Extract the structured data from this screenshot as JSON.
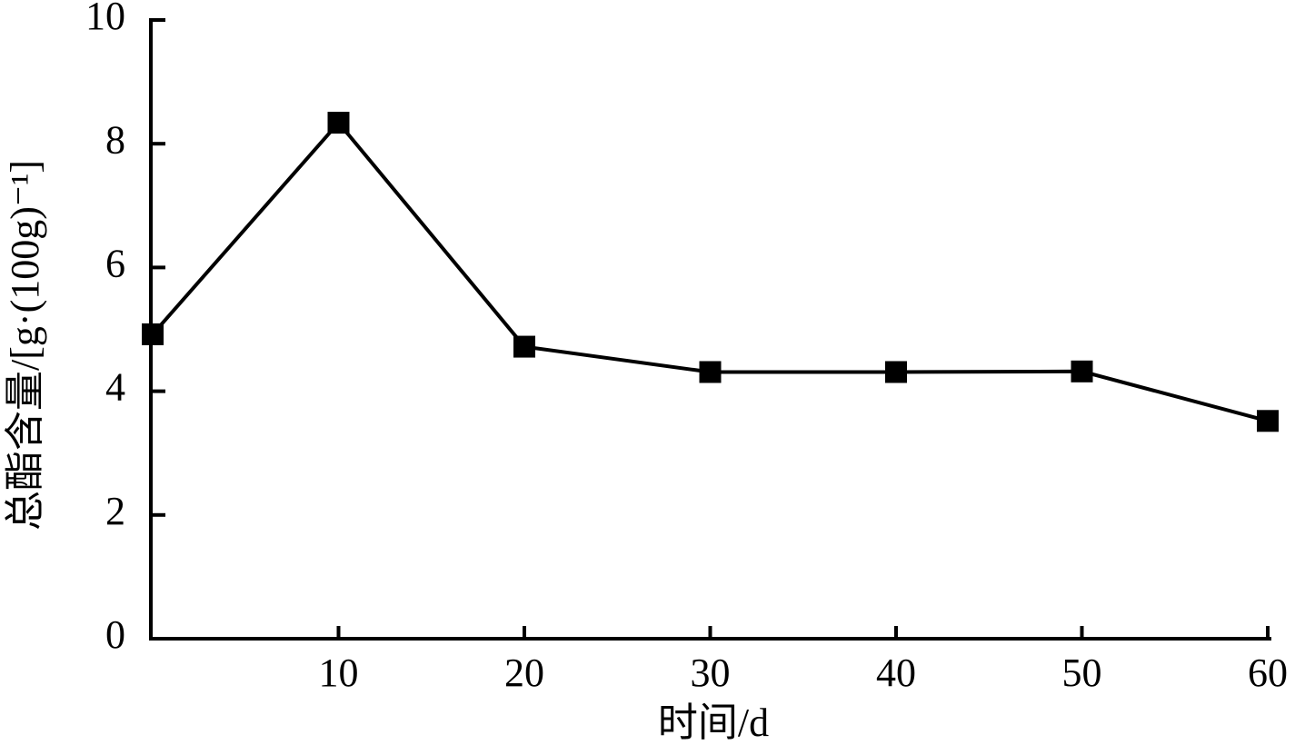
{
  "chart_data": {
    "type": "line",
    "x_label": "时间/d",
    "y_label": "总酯含量/[g·(100g)⁻¹]",
    "x": [
      0,
      10,
      20,
      30,
      40,
      50,
      60
    ],
    "series": [
      {
        "color": "#000000",
        "values": [
          4.92,
          8.34,
          4.72,
          4.31,
          4.31,
          4.32,
          3.52
        ]
      }
    ],
    "xlim": [
      0,
      60
    ],
    "xticks": [
      10,
      20,
      30,
      40,
      50,
      60
    ],
    "ylim": [
      0,
      10
    ],
    "yticks": [
      0,
      2,
      4,
      6,
      8,
      10
    ],
    "grid": false
  }
}
